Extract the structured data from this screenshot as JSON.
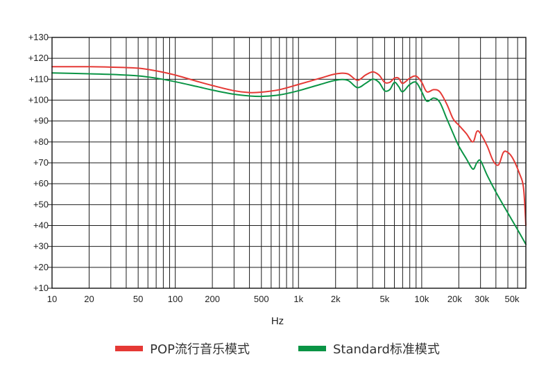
{
  "chart_data": {
    "type": "line",
    "title": "",
    "xlabel": "Hz",
    "ylabel": "",
    "x_scale": "log",
    "xlim": [
      10,
      70000
    ],
    "ylim": [
      10,
      130
    ],
    "grid": true,
    "legend_position": "bottom",
    "x_tick_labels": [
      {
        "value": 10,
        "label": "10"
      },
      {
        "value": 20,
        "label": "20"
      },
      {
        "value": 50,
        "label": "50"
      },
      {
        "value": 100,
        "label": "100"
      },
      {
        "value": 200,
        "label": "200"
      },
      {
        "value": 500,
        "label": "500"
      },
      {
        "value": 1000,
        "label": "1k"
      },
      {
        "value": 2000,
        "label": "2k"
      },
      {
        "value": 5000,
        "label": "5k"
      },
      {
        "value": 10000,
        "label": "10k"
      },
      {
        "value": 20000,
        "label": "20k"
      },
      {
        "value": 30000,
        "label": "30k"
      },
      {
        "value": 50000,
        "label": "50k"
      }
    ],
    "y_ticks": [
      10,
      20,
      30,
      40,
      50,
      60,
      70,
      80,
      90,
      100,
      110,
      120,
      130
    ],
    "y_tick_labels": [
      "+10",
      "+20",
      "+30",
      "+40",
      "+50",
      "+60",
      "+70",
      "+80",
      "+90",
      "+100",
      "+110",
      "+120",
      "+130"
    ],
    "series": [
      {
        "name": "POP流行音乐模式",
        "color": "#e53935",
        "points": [
          [
            10,
            116
          ],
          [
            20,
            116
          ],
          [
            30,
            115.8
          ],
          [
            50,
            115.3
          ],
          [
            70,
            114
          ],
          [
            100,
            112
          ],
          [
            150,
            109
          ],
          [
            200,
            107
          ],
          [
            300,
            104.5
          ],
          [
            400,
            103.6
          ],
          [
            500,
            103.8
          ],
          [
            700,
            105
          ],
          [
            1000,
            107.5
          ],
          [
            1500,
            110.5
          ],
          [
            2000,
            112.5
          ],
          [
            2500,
            112.6
          ],
          [
            3000,
            109.5
          ],
          [
            3500,
            112
          ],
          [
            4000,
            113.5
          ],
          [
            4500,
            112
          ],
          [
            5000,
            108.5
          ],
          [
            5500,
            108.5
          ],
          [
            6000,
            110.5
          ],
          [
            6500,
            110.5
          ],
          [
            7000,
            108
          ],
          [
            8000,
            110.5
          ],
          [
            9000,
            111.5
          ],
          [
            10000,
            108.5
          ],
          [
            11000,
            104
          ],
          [
            12500,
            105
          ],
          [
            14000,
            104
          ],
          [
            16000,
            98
          ],
          [
            18000,
            91
          ],
          [
            20000,
            88
          ],
          [
            23000,
            84
          ],
          [
            26000,
            80
          ],
          [
            28000,
            85
          ],
          [
            30000,
            84
          ],
          [
            34000,
            78
          ],
          [
            38000,
            71
          ],
          [
            42000,
            69
          ],
          [
            46000,
            75
          ],
          [
            50000,
            75
          ],
          [
            55000,
            72
          ],
          [
            62000,
            65
          ],
          [
            67000,
            58
          ],
          [
            70000,
            40
          ]
        ]
      },
      {
        "name": "Standard标准模式",
        "color": "#0a9445",
        "points": [
          [
            10,
            113
          ],
          [
            20,
            112.6
          ],
          [
            30,
            112.3
          ],
          [
            50,
            111.6
          ],
          [
            70,
            110.5
          ],
          [
            100,
            108.8
          ],
          [
            150,
            106.5
          ],
          [
            200,
            104.8
          ],
          [
            300,
            102.8
          ],
          [
            400,
            102
          ],
          [
            500,
            101.8
          ],
          [
            700,
            102.5
          ],
          [
            1000,
            104.5
          ],
          [
            1500,
            107.5
          ],
          [
            2000,
            109.5
          ],
          [
            2500,
            109.5
          ],
          [
            3000,
            106
          ],
          [
            3500,
            108
          ],
          [
            4000,
            110
          ],
          [
            4500,
            108.5
          ],
          [
            5000,
            104.5
          ],
          [
            5500,
            105
          ],
          [
            6000,
            108.5
          ],
          [
            6500,
            106.5
          ],
          [
            7000,
            104
          ],
          [
            8000,
            107.5
          ],
          [
            9000,
            108.5
          ],
          [
            10000,
            104
          ],
          [
            11000,
            99.5
          ],
          [
            12500,
            101
          ],
          [
            14000,
            99
          ],
          [
            16000,
            91
          ],
          [
            18000,
            84
          ],
          [
            20000,
            78
          ],
          [
            23000,
            72
          ],
          [
            26000,
            67
          ],
          [
            28000,
            70
          ],
          [
            30000,
            71
          ],
          [
            34000,
            64
          ],
          [
            40000,
            56
          ],
          [
            50000,
            46
          ],
          [
            60000,
            38
          ],
          [
            70000,
            31
          ]
        ]
      }
    ]
  }
}
